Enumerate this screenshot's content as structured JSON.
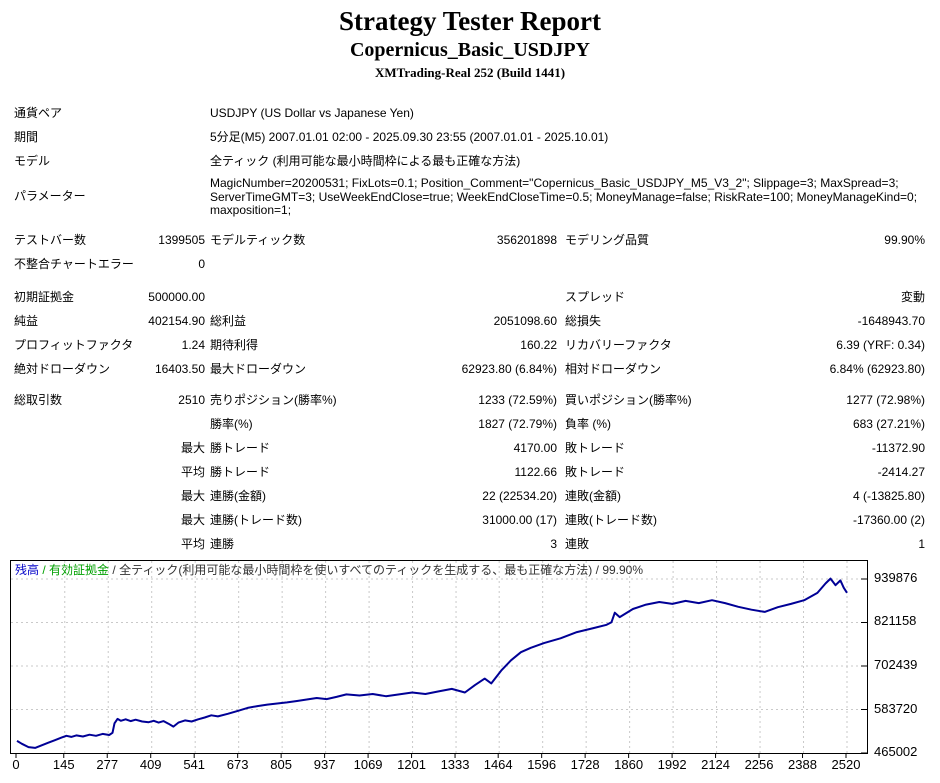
{
  "header": {
    "title": "Strategy Tester Report",
    "ea_name": "Copernicus_Basic_USDJPY",
    "server": "XMTrading-Real 252 (Build 1441)"
  },
  "report": {
    "info_rows": [
      {
        "label": "通貨ペア",
        "value": "USDJPY (US Dollar vs Japanese Yen)"
      },
      {
        "label": "期間",
        "value": "5分足(M5) 2007.01.01 02:00 - 2025.09.30 23:55 (2007.01.01 - 2025.10.01)"
      },
      {
        "label": "モデル",
        "value": "全ティック (利用可能な最小時間枠による最も正確な方法)"
      },
      {
        "label": "パラメーター",
        "value": "MagicNumber=20200531; FixLots=0.1; Position_Comment=\"Copernicus_Basic_USDJPY_M5_V3_2\"; Slippage=3; MaxSpread=3; ServerTimeGMT=3; UseWeekEndClose=true; WeekEndCloseTime=0.5; MoneyManage=false; RiskRate=100; MoneyManageKind=0; maxposition=1;",
        "tall": true
      }
    ],
    "stat_groups": [
      [
        {
          "c1l": "テストバー数",
          "c1v": "1399505",
          "c2l": "モデルティック数",
          "c2v": "356201898",
          "c3l": "モデリング品質",
          "c3v": "99.90%"
        },
        {
          "c1l": "不整合チャートエラー",
          "c1v": "0",
          "c2l": "",
          "c2v": "",
          "c3l": "",
          "c3v": ""
        }
      ],
      [
        {
          "c1l": "初期証拠金",
          "c1v": "500000.00",
          "c2l": "",
          "c2v": "",
          "c3l": "スプレッド",
          "c3v": "変動"
        },
        {
          "c1l": "純益",
          "c1v": "402154.90",
          "c2l": "総利益",
          "c2v": "2051098.60",
          "c3l": "総損失",
          "c3v": "-1648943.70"
        },
        {
          "c1l": "プロフィットファクタ",
          "c1v": "1.24",
          "c2l": "期待利得",
          "c2v": "160.22",
          "c3l": "リカバリーファクタ",
          "c3v": "6.39 (YRF: 0.34)"
        },
        {
          "c1l": "絶対ドローダウン",
          "c1v": "16403.50",
          "c2l": "最大ドローダウン",
          "c2v": "62923.80 (6.84%)",
          "c3l": "相対ドローダウン",
          "c3v": "6.84% (62923.80)"
        }
      ],
      [
        {
          "c1l": "総取引数",
          "c1v": "2510",
          "c2l": "売りポジション(勝率%)",
          "c2v": "1233 (72.59%)",
          "c3l": "買いポジション(勝率%)",
          "c3v": "1277 (72.98%)"
        },
        {
          "c1l": "",
          "c1v": "",
          "c2l": "勝率(%)",
          "c2v": "1827 (72.79%)",
          "c3l": "負率 (%)",
          "c3v": "683 (27.21%)"
        },
        {
          "c1l": "",
          "c1v": "最大",
          "c2l": "勝トレード",
          "c2v": "4170.00",
          "c3l": "敗トレード",
          "c3v": "-11372.90"
        },
        {
          "c1l": "",
          "c1v": "平均",
          "c2l": "勝トレード",
          "c2v": "1122.66",
          "c3l": "敗トレード",
          "c3v": "-2414.27"
        },
        {
          "c1l": "",
          "c1v": "最大",
          "c2l": "連勝(金額)",
          "c2v": "22 (22534.20)",
          "c3l": "連敗(金額)",
          "c3v": "4 (-13825.80)"
        },
        {
          "c1l": "",
          "c1v": "最大",
          "c2l": "連勝(トレード数)",
          "c2v": "31000.00 (17)",
          "c3l": "連敗(トレード数)",
          "c3v": "-17360.00 (2)"
        },
        {
          "c1l": "",
          "c1v": "平均",
          "c2l": "連勝",
          "c2v": "3",
          "c3l": "連敗",
          "c3v": "1"
        }
      ]
    ]
  },
  "chart": {
    "legend": {
      "balance": "残高",
      "sep": " / ",
      "equity": "有効証拠金",
      "model": "全ティック(利用可能な最小時間枠を使いすべてのティックを生成する、最も正確な方法)",
      "quality": "99.90%"
    }
  },
  "chart_data": {
    "type": "line",
    "title": "",
    "xlabel": "",
    "ylabel": "",
    "legend_position": "top-left-inside",
    "grid": "dashed",
    "line_color": "#000096",
    "balance_label_color": "#0000C8",
    "equity_label_color": "#00A000",
    "grid_color": "#c9c9c9",
    "xlim": [
      0,
      2520
    ],
    "ylim": [
      465002,
      988970
    ],
    "x_ticks": [
      0,
      145,
      277,
      409,
      541,
      673,
      805,
      937,
      1069,
      1201,
      1333,
      1464,
      1596,
      1728,
      1860,
      1992,
      2124,
      2256,
      2388,
      2520
    ],
    "y_ticks": [
      465002,
      583720,
      702439,
      821158,
      939876
    ],
    "series": [
      {
        "name": "残高",
        "points": [
          [
            0,
            498000
          ],
          [
            15,
            490000
          ],
          [
            35,
            481000
          ],
          [
            55,
            479000
          ],
          [
            75,
            486000
          ],
          [
            95,
            493000
          ],
          [
            115,
            500000
          ],
          [
            135,
            507000
          ],
          [
            150,
            512000
          ],
          [
            165,
            509000
          ],
          [
            180,
            513000
          ],
          [
            200,
            510000
          ],
          [
            220,
            515000
          ],
          [
            240,
            512000
          ],
          [
            260,
            517000
          ],
          [
            280,
            514000
          ],
          [
            290,
            520000
          ],
          [
            296,
            546000
          ],
          [
            305,
            558000
          ],
          [
            315,
            553000
          ],
          [
            330,
            557000
          ],
          [
            345,
            552000
          ],
          [
            360,
            556000
          ],
          [
            380,
            551000
          ],
          [
            400,
            549000
          ],
          [
            415,
            553000
          ],
          [
            430,
            548000
          ],
          [
            445,
            552000
          ],
          [
            460,
            545000
          ],
          [
            475,
            537000
          ],
          [
            490,
            548000
          ],
          [
            510,
            554000
          ],
          [
            530,
            551000
          ],
          [
            550,
            557000
          ],
          [
            570,
            562000
          ],
          [
            590,
            568000
          ],
          [
            610,
            565000
          ],
          [
            640,
            572000
          ],
          [
            670,
            580000
          ],
          [
            700,
            588000
          ],
          [
            730,
            593000
          ],
          [
            760,
            597000
          ],
          [
            790,
            600000
          ],
          [
            820,
            603000
          ],
          [
            850,
            607000
          ],
          [
            880,
            611000
          ],
          [
            910,
            615000
          ],
          [
            940,
            612000
          ],
          [
            970,
            618000
          ],
          [
            1000,
            625000
          ],
          [
            1040,
            622000
          ],
          [
            1080,
            626000
          ],
          [
            1120,
            620000
          ],
          [
            1160,
            625000
          ],
          [
            1200,
            630000
          ],
          [
            1240,
            626000
          ],
          [
            1280,
            633000
          ],
          [
            1320,
            640000
          ],
          [
            1360,
            630000
          ],
          [
            1390,
            650000
          ],
          [
            1420,
            668000
          ],
          [
            1440,
            655000
          ],
          [
            1470,
            690000
          ],
          [
            1500,
            718000
          ],
          [
            1530,
            740000
          ],
          [
            1560,
            752000
          ],
          [
            1600,
            765000
          ],
          [
            1650,
            778000
          ],
          [
            1700,
            795000
          ],
          [
            1750,
            806000
          ],
          [
            1790,
            815000
          ],
          [
            1805,
            822000
          ],
          [
            1815,
            848000
          ],
          [
            1830,
            836000
          ],
          [
            1870,
            858000
          ],
          [
            1910,
            870000
          ],
          [
            1950,
            877000
          ],
          [
            1990,
            872000
          ],
          [
            2030,
            880000
          ],
          [
            2070,
            874000
          ],
          [
            2110,
            882000
          ],
          [
            2150,
            874000
          ],
          [
            2190,
            864000
          ],
          [
            2230,
            856000
          ],
          [
            2270,
            850000
          ],
          [
            2310,
            863000
          ],
          [
            2350,
            872000
          ],
          [
            2390,
            882000
          ],
          [
            2430,
            902000
          ],
          [
            2455,
            928000
          ],
          [
            2470,
            941000
          ],
          [
            2485,
            923000
          ],
          [
            2500,
            936000
          ],
          [
            2510,
            916000
          ],
          [
            2520,
            902155
          ]
        ]
      }
    ]
  }
}
